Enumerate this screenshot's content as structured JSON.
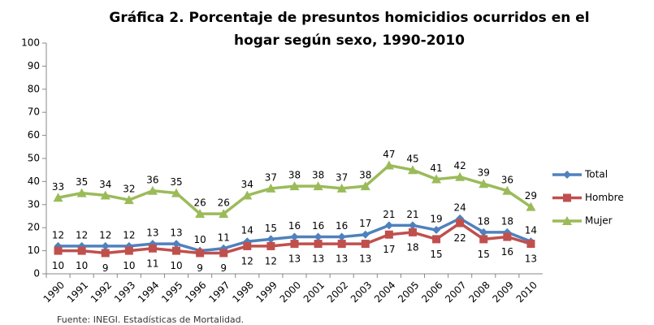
{
  "chart_data": {
    "type": "line",
    "title": "Gráfica 2. Porcentaje de presuntos homicidios ocurridos en el hogar según sexo, 1990-2010",
    "categories": [
      "1990",
      "1991",
      "1992",
      "1993",
      "1994",
      "1995",
      "1996",
      "1997",
      "1998",
      "1999",
      "2000",
      "2001",
      "2002",
      "2003",
      "2004",
      "2005",
      "2006",
      "2007",
      "2008",
      "2009",
      "2010"
    ],
    "series": [
      {
        "name": "Total",
        "color": "#4f81bd",
        "marker": "diamond",
        "values": [
          12,
          12,
          12,
          12,
          13,
          13,
          10,
          11,
          14,
          15,
          16,
          16,
          16,
          17,
          21,
          21,
          19,
          24,
          18,
          18,
          14
        ]
      },
      {
        "name": "Hombre",
        "color": "#c0504d",
        "marker": "square",
        "values": [
          10,
          10,
          9,
          10,
          11,
          10,
          9,
          9,
          12,
          12,
          13,
          13,
          13,
          13,
          17,
          18,
          15,
          22,
          15,
          16,
          13
        ]
      },
      {
        "name": "Mujer",
        "color": "#9bbb59",
        "marker": "triangle",
        "values": [
          33,
          35,
          34,
          32,
          36,
          35,
          26,
          26,
          34,
          37,
          38,
          38,
          37,
          38,
          47,
          45,
          41,
          42,
          39,
          36,
          29
        ]
      }
    ],
    "ylim": [
      0,
      100
    ],
    "yticks": [
      0,
      10,
      20,
      30,
      40,
      50,
      60,
      70,
      80,
      90,
      100
    ],
    "grid": false,
    "legend": "right",
    "source": "Fuente: INEGI. Estadísticas de Mortalidad."
  }
}
